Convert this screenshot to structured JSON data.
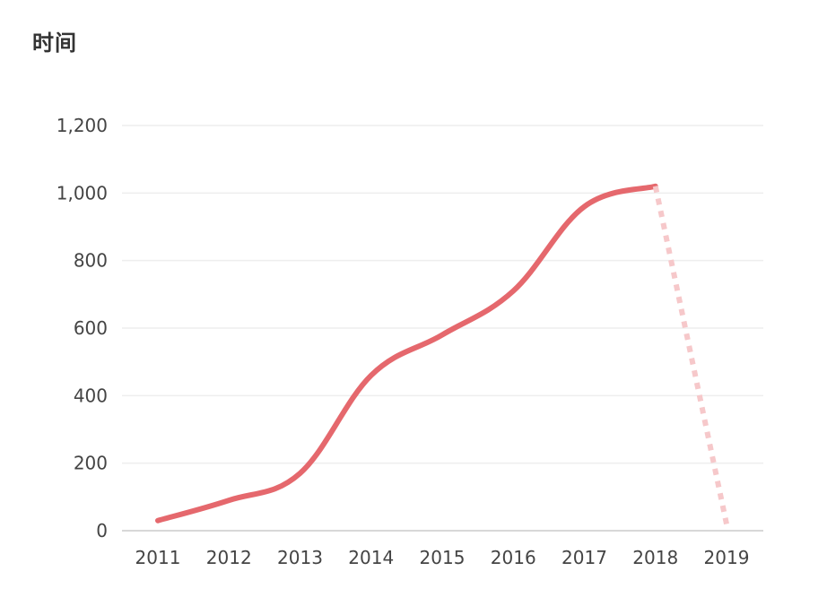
{
  "chart_data": {
    "type": "line",
    "title": "时间",
    "xlabel": "",
    "ylabel": "",
    "categories": [
      "2011",
      "2012",
      "2013",
      "2014",
      "2015",
      "2016",
      "2017",
      "2018",
      "2019"
    ],
    "series": [
      {
        "values": [
          30,
          90,
          170,
          460,
          580,
          710,
          960,
          1020,
          20
        ],
        "segments": "solid from 2011 to 2018; dotted from 2018 to 2019"
      }
    ],
    "ylim": [
      0,
      1200
    ],
    "yticks": [
      0,
      200,
      400,
      600,
      800,
      1000,
      1200
    ],
    "ytick_labels": [
      "0",
      "200",
      "400",
      "600",
      "800",
      "1,000",
      "1,200"
    ],
    "grid": "horizontal",
    "legend": "none"
  },
  "colors": {
    "line": "#e5686d",
    "dotted_line": "#f6c8ca",
    "grid": "#eeeeee",
    "axis": "#cccccc",
    "text": "#444444",
    "title": "#333333"
  }
}
